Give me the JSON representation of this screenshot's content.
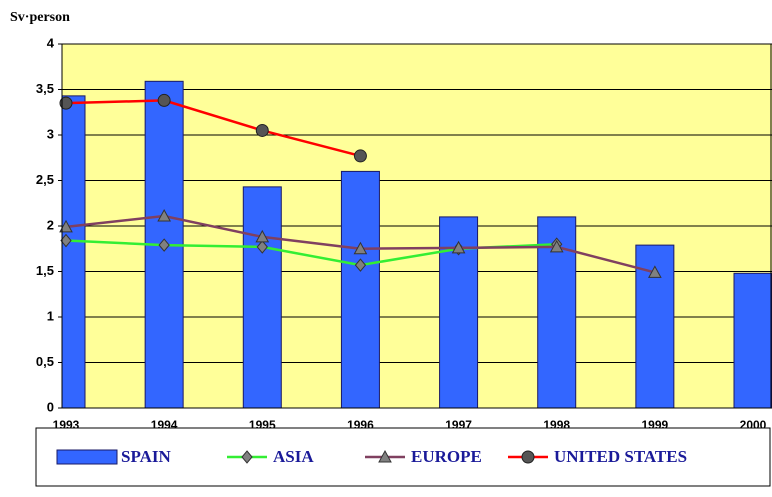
{
  "chart_data": {
    "type": "bar_line",
    "y_label": "Sv·person",
    "categories": [
      "1993",
      "1994",
      "1995",
      "1996",
      "1997",
      "1998",
      "1999",
      "2000"
    ],
    "series": [
      {
        "name": "SPAIN",
        "type": "bar",
        "color": "#3366ff",
        "values": [
          3.43,
          3.59,
          2.43,
          2.6,
          2.1,
          2.1,
          1.79,
          1.48
        ]
      },
      {
        "name": "ASIA",
        "type": "line",
        "color": "#33ee33",
        "marker": "diamond",
        "marker_color": "#808080",
        "values": [
          1.84,
          1.79,
          1.77,
          1.57,
          1.75,
          1.8,
          null,
          null
        ]
      },
      {
        "name": "EUROPE",
        "type": "line",
        "color": "#804060",
        "marker": "triangle",
        "marker_color": "#808080",
        "values": [
          1.99,
          2.11,
          1.88,
          1.75,
          1.76,
          1.77,
          1.49,
          null
        ]
      },
      {
        "name": "UNITED STATES",
        "type": "line",
        "color": "#ff0000",
        "marker": "circle",
        "marker_color": "#555555",
        "values": [
          3.35,
          3.38,
          3.05,
          2.77,
          null,
          null,
          null,
          null
        ]
      }
    ],
    "ylim": [
      0,
      4
    ],
    "yticks": [
      0,
      {
        "value": 0.5,
        "label": "0,5"
      },
      1,
      {
        "value": 1.5,
        "label": "1,5"
      },
      2,
      {
        "value": 2.5,
        "label": "2,5"
      },
      3,
      {
        "value": 3.5,
        "label": "3,5"
      },
      4
    ],
    "grid": true,
    "plot_background": "#ffff99",
    "legend": "bottom"
  }
}
